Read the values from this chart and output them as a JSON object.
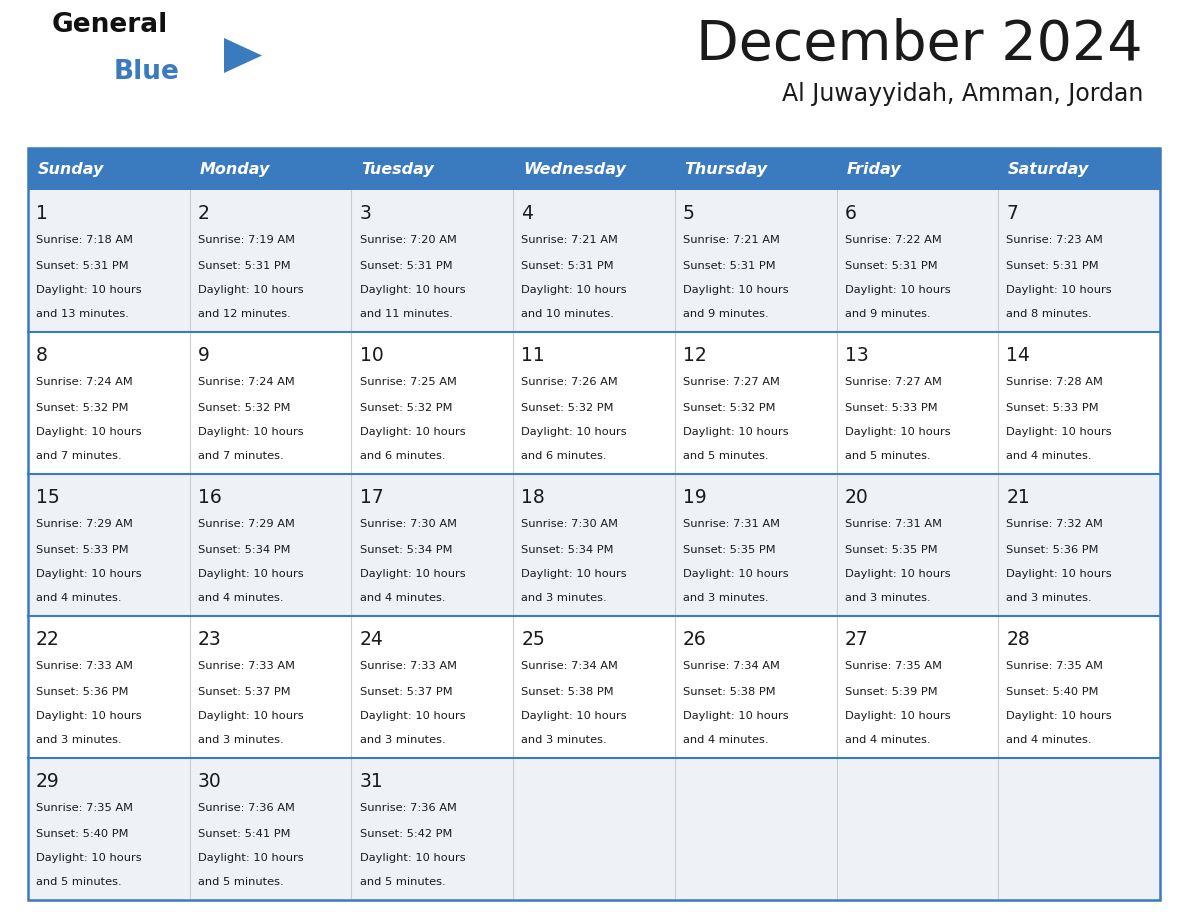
{
  "title": "December 2024",
  "subtitle": "Al Juwayyidah, Amman, Jordan",
  "header_color": "#3a7abf",
  "header_text_color": "#ffffff",
  "bg_color": "#ffffff",
  "cell_bg_even": "#eef2f7",
  "cell_bg_odd": "#ffffff",
  "border_color": "#3a7abf",
  "row_line_color": "#3a7abf",
  "col_line_color": "#cccccc",
  "text_color": "#1a1a1a",
  "days_of_week": [
    "Sunday",
    "Monday",
    "Tuesday",
    "Wednesday",
    "Thursday",
    "Friday",
    "Saturday"
  ],
  "weeks": [
    [
      {
        "day": 1,
        "sunrise": "7:18 AM",
        "sunset": "5:31 PM",
        "daylight": "10 hours and 13 minutes."
      },
      {
        "day": 2,
        "sunrise": "7:19 AM",
        "sunset": "5:31 PM",
        "daylight": "10 hours and 12 minutes."
      },
      {
        "day": 3,
        "sunrise": "7:20 AM",
        "sunset": "5:31 PM",
        "daylight": "10 hours and 11 minutes."
      },
      {
        "day": 4,
        "sunrise": "7:21 AM",
        "sunset": "5:31 PM",
        "daylight": "10 hours and 10 minutes."
      },
      {
        "day": 5,
        "sunrise": "7:21 AM",
        "sunset": "5:31 PM",
        "daylight": "10 hours and 9 minutes."
      },
      {
        "day": 6,
        "sunrise": "7:22 AM",
        "sunset": "5:31 PM",
        "daylight": "10 hours and 9 minutes."
      },
      {
        "day": 7,
        "sunrise": "7:23 AM",
        "sunset": "5:31 PM",
        "daylight": "10 hours and 8 minutes."
      }
    ],
    [
      {
        "day": 8,
        "sunrise": "7:24 AM",
        "sunset": "5:32 PM",
        "daylight": "10 hours and 7 minutes."
      },
      {
        "day": 9,
        "sunrise": "7:24 AM",
        "sunset": "5:32 PM",
        "daylight": "10 hours and 7 minutes."
      },
      {
        "day": 10,
        "sunrise": "7:25 AM",
        "sunset": "5:32 PM",
        "daylight": "10 hours and 6 minutes."
      },
      {
        "day": 11,
        "sunrise": "7:26 AM",
        "sunset": "5:32 PM",
        "daylight": "10 hours and 6 minutes."
      },
      {
        "day": 12,
        "sunrise": "7:27 AM",
        "sunset": "5:32 PM",
        "daylight": "10 hours and 5 minutes."
      },
      {
        "day": 13,
        "sunrise": "7:27 AM",
        "sunset": "5:33 PM",
        "daylight": "10 hours and 5 minutes."
      },
      {
        "day": 14,
        "sunrise": "7:28 AM",
        "sunset": "5:33 PM",
        "daylight": "10 hours and 4 minutes."
      }
    ],
    [
      {
        "day": 15,
        "sunrise": "7:29 AM",
        "sunset": "5:33 PM",
        "daylight": "10 hours and 4 minutes."
      },
      {
        "day": 16,
        "sunrise": "7:29 AM",
        "sunset": "5:34 PM",
        "daylight": "10 hours and 4 minutes."
      },
      {
        "day": 17,
        "sunrise": "7:30 AM",
        "sunset": "5:34 PM",
        "daylight": "10 hours and 4 minutes."
      },
      {
        "day": 18,
        "sunrise": "7:30 AM",
        "sunset": "5:34 PM",
        "daylight": "10 hours and 3 minutes."
      },
      {
        "day": 19,
        "sunrise": "7:31 AM",
        "sunset": "5:35 PM",
        "daylight": "10 hours and 3 minutes."
      },
      {
        "day": 20,
        "sunrise": "7:31 AM",
        "sunset": "5:35 PM",
        "daylight": "10 hours and 3 minutes."
      },
      {
        "day": 21,
        "sunrise": "7:32 AM",
        "sunset": "5:36 PM",
        "daylight": "10 hours and 3 minutes."
      }
    ],
    [
      {
        "day": 22,
        "sunrise": "7:33 AM",
        "sunset": "5:36 PM",
        "daylight": "10 hours and 3 minutes."
      },
      {
        "day": 23,
        "sunrise": "7:33 AM",
        "sunset": "5:37 PM",
        "daylight": "10 hours and 3 minutes."
      },
      {
        "day": 24,
        "sunrise": "7:33 AM",
        "sunset": "5:37 PM",
        "daylight": "10 hours and 3 minutes."
      },
      {
        "day": 25,
        "sunrise": "7:34 AM",
        "sunset": "5:38 PM",
        "daylight": "10 hours and 3 minutes."
      },
      {
        "day": 26,
        "sunrise": "7:34 AM",
        "sunset": "5:38 PM",
        "daylight": "10 hours and 4 minutes."
      },
      {
        "day": 27,
        "sunrise": "7:35 AM",
        "sunset": "5:39 PM",
        "daylight": "10 hours and 4 minutes."
      },
      {
        "day": 28,
        "sunrise": "7:35 AM",
        "sunset": "5:40 PM",
        "daylight": "10 hours and 4 minutes."
      }
    ],
    [
      {
        "day": 29,
        "sunrise": "7:35 AM",
        "sunset": "5:40 PM",
        "daylight": "10 hours and 5 minutes."
      },
      {
        "day": 30,
        "sunrise": "7:36 AM",
        "sunset": "5:41 PM",
        "daylight": "10 hours and 5 minutes."
      },
      {
        "day": 31,
        "sunrise": "7:36 AM",
        "sunset": "5:42 PM",
        "daylight": "10 hours and 5 minutes."
      },
      null,
      null,
      null,
      null
    ]
  ],
  "logo_general_color": "#111111",
  "logo_blue_color": "#3a7abf",
  "logo_triangle_color": "#3a7abf",
  "figsize": [
    11.88,
    9.18
  ],
  "dpi": 100
}
